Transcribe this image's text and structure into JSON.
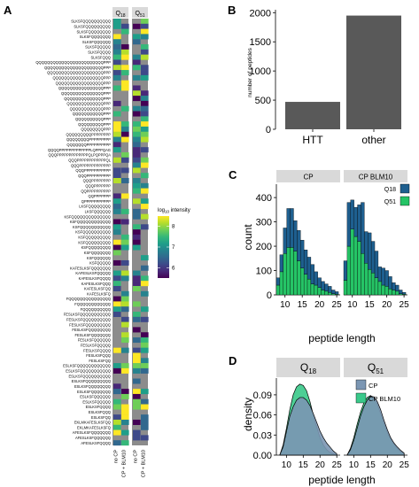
{
  "colors": {
    "na": "#8c8c8c",
    "strip_bg": "#d9d9d9",
    "bar_gray": "#595959",
    "q18": "#1e5f8f",
    "q51": "#25c466",
    "cp_density": "#7b96b3",
    "bm_density": "#3ac98a",
    "viridis": [
      "#440154",
      "#482878",
      "#3e4989",
      "#31688e",
      "#26828e",
      "#1f9e89",
      "#35b779",
      "#6ece58",
      "#b5de2b",
      "#fde725"
    ]
  },
  "panels": {
    "A": {
      "label": "A",
      "strip_labels": [
        "Q",
        "Q"
      ],
      "strip_subs": [
        "18",
        "51"
      ],
      "x_labels": [
        "no CP",
        "CP + BLM10",
        "no CP",
        "CP + BLM10"
      ],
      "legend": {
        "title_main": "log",
        "title_sub": "10",
        "title_rest": " intensity",
        "ticks": [
          6,
          7,
          8
        ],
        "range": [
          5.5,
          8.5
        ]
      },
      "peptides": [
        "SLKSFQQQQQQQQQQ",
        "SLKSFQQQQQQQQQ",
        "SLKSFQQQQQQQQ",
        "SLKSFQQQQQQQ",
        "SLKSFQQQQQQ",
        "SLKSFQQQQQ",
        "SLKSFQQQQ",
        "SLKSFQQQ",
        "QQQQQQQQQQQQQQQQQQQQQQQQPPP",
        "QQQQQQQQQQQQQQQQQQQQQPPP",
        "QQQQQQQQQQQQQQQQQQQQPPP",
        "QQQQQQQQQQQQQQQQQQPPP",
        "QQQQQQQQQQQQQQQQQPPP",
        "QQQQQQQQQQQQQQQQPPP",
        "QQQQQQQQQQQQQQQPPP",
        "QQQQQQQQQQQQQQPPP",
        "QQQQQQQQQQQQQPPP",
        "QQQQQQQQQQQQPPP",
        "QQQQQQQQQQQPPP",
        "QQQQQQQQQQPPP",
        "QQQQQQQQQPPP",
        "QQQQQQQQPPP",
        "QQQQQQQQQPPPPPPPP",
        "QQQQQQQQPPPPPPPPP",
        "QQQQQQQPPPPPPPPPP",
        "QQQQPPPPPPPPPPPPPLQPPPQAG",
        "QQQPPPPPPPPPPPPPQLPQPPPQA",
        "QQQPPPPPPPPPPPPQL",
        "QQQPPPPPPPPPPPPP",
        "QQQPPPPPPPPPPP",
        "QQQPPPPPPPPPP",
        "QQQPPPPPPPP",
        "QQQPPPPPPP",
        "QQPPPPPPPPPP",
        "QQPPPPPPP",
        "QPPPPPPPPPPP",
        "LKSFQQQQQQQQ",
        "LKSFQQQQQQ",
        "KSFQQQQQQQQQQQQQQ",
        "KSFQQQQQQQQQQQQ",
        "KSFQQQQQQQQQQQ",
        "KSFQQQQQQQQQQ",
        "KSFQQQQQQQQQ",
        "KSFQQQQQQQQQ",
        "KSFQQQQQQQQ",
        "KSFQQQQQQQ",
        "KSFQQQQQQ",
        "KSFQQQQQ",
        "KAFESLKSFQQQQQQQ",
        "KAFESLKSFQQQQQ",
        "KAFESLKSFQQQQ",
        "KAFESLKSFQQQ",
        "KAFESLKSFQQ",
        "KAFESLKSFQ",
        "FQQQQQQQQQQQQQQQ",
        "FQQQQQQQQQQQQ",
        "FQQQQQQQQQQ",
        "FESLKSFQQQQQQQQQQQ",
        "FESLKSFQQQQQQQQQQ",
        "FESLKSFQQQQQQQQQ",
        "FESLKSFQQQQQQQQ",
        "FESLKSFQQQQQQQ",
        "FESLKSFQQQQQQ",
        "FESLKSFQQQQQ",
        "FESLKSFQQQQ",
        "FESLKSFQQQ",
        "FESLKSFQQ",
        "ESLKSFQQQQQQQQQQQQ",
        "ESLKSFQQQQQQQQQQQ",
        "ESLKSFQQQQQQQQQQ",
        "ESLKSFQQQQQQQQQ",
        "ESLKSFQQQQQQQQ",
        "ESLKSFQQQQQQQ",
        "ESLKSFQQQQQQ",
        "ESLKSFQQQQQ",
        "ESLKSFQQQQ",
        "ESLKSFQQQ",
        "ESLKSFQQ",
        "EKLMKAFESLKSFQQ",
        "EKLMKAFESLKSFQ",
        "AFESLKSFQQQQQQQ",
        "AFESLKSFQQQQQQ",
        "AFESLKSFQQQQ"
      ]
    },
    "B": {
      "label": "B",
      "chart_data": {
        "type": "bar",
        "categories": [
          "HTT",
          "other"
        ],
        "values": [
          470,
          1950
        ],
        "ylabel": "number of peptides",
        "yticks": [
          0,
          500,
          1000,
          1500,
          2000
        ],
        "ylim": [
          0,
          2050
        ]
      }
    },
    "C": {
      "label": "C",
      "chart_data": {
        "type": "bar",
        "stacked": true,
        "facets": [
          "CP",
          "CP BLM10"
        ],
        "x": [
          8,
          9,
          10,
          11,
          12,
          13,
          14,
          15,
          16,
          17,
          18,
          19,
          20,
          21,
          22,
          23,
          24,
          25
        ],
        "series_names": [
          "Q18",
          "Q51"
        ],
        "CP": {
          "Q51": [
            40,
            95,
            170,
            195,
            195,
            180,
            140,
            110,
            85,
            65,
            45,
            40,
            30,
            20,
            15,
            10,
            5,
            3
          ],
          "Q18": [
            30,
            70,
            105,
            160,
            160,
            125,
            125,
            115,
            100,
            90,
            80,
            55,
            40,
            35,
            30,
            25,
            15,
            10
          ]
        },
        "CP BLM10": {
          "Q51": [
            60,
            200,
            270,
            240,
            220,
            170,
            130,
            105,
            90,
            70,
            55,
            40,
            35,
            25,
            20,
            15,
            5,
            3
          ],
          "Q18": [
            80,
            180,
            120,
            120,
            150,
            210,
            130,
            150,
            130,
            110,
            60,
            70,
            65,
            50,
            30,
            25,
            15,
            7
          ]
        },
        "xlabel": "peptide length",
        "ylabel": "count",
        "xticks": [
          10,
          15,
          20,
          25
        ],
        "yticks": [
          0,
          100,
          200,
          300,
          400
        ],
        "xlim": [
          7.5,
          26
        ],
        "ylim": [
          0,
          455
        ],
        "legend_position": "right"
      }
    },
    "D": {
      "label": "D",
      "chart_data": {
        "type": "area",
        "facets": [
          "Q",
          "Q"
        ],
        "facet_subs": [
          "18",
          "51"
        ],
        "series_names": [
          "CP",
          "CP BLM10"
        ],
        "x": [
          8,
          9,
          10,
          11,
          12,
          13,
          14,
          15,
          16,
          17,
          18,
          19,
          20,
          21,
          22,
          23,
          24,
          25
        ],
        "Q18": {
          "CP": [
            0.0,
            0.012,
            0.035,
            0.058,
            0.072,
            0.082,
            0.086,
            0.086,
            0.082,
            0.074,
            0.062,
            0.049,
            0.036,
            0.026,
            0.018,
            0.012,
            0.006,
            0.002
          ],
          "CP BLM10": [
            0.0,
            0.015,
            0.04,
            0.068,
            0.09,
            0.102,
            0.106,
            0.104,
            0.096,
            0.08,
            0.06,
            0.042,
            0.026,
            0.015,
            0.008,
            0.004,
            0.002,
            0.001
          ]
        },
        "Q51": {
          "CP": [
            0.0,
            0.008,
            0.022,
            0.04,
            0.058,
            0.072,
            0.082,
            0.088,
            0.087,
            0.08,
            0.068,
            0.052,
            0.038,
            0.026,
            0.018,
            0.012,
            0.007,
            0.003
          ],
          "CP BLM10": [
            0.0,
            0.01,
            0.026,
            0.046,
            0.064,
            0.078,
            0.086,
            0.089,
            0.085,
            0.076,
            0.062,
            0.048,
            0.034,
            0.024,
            0.016,
            0.01,
            0.005,
            0.002
          ]
        },
        "xlabel": "peptide length",
        "ylabel": "density",
        "xticks": [
          10,
          15,
          20,
          25
        ],
        "yticks": [
          0.0,
          0.03,
          0.06,
          0.09
        ],
        "ytick_labels": [
          "0.00",
          "0.03",
          "0.06",
          "0.09"
        ],
        "xlim": [
          7,
          26
        ],
        "ylim": [
          0,
          0.115
        ],
        "legend_position": "top-right"
      }
    }
  }
}
